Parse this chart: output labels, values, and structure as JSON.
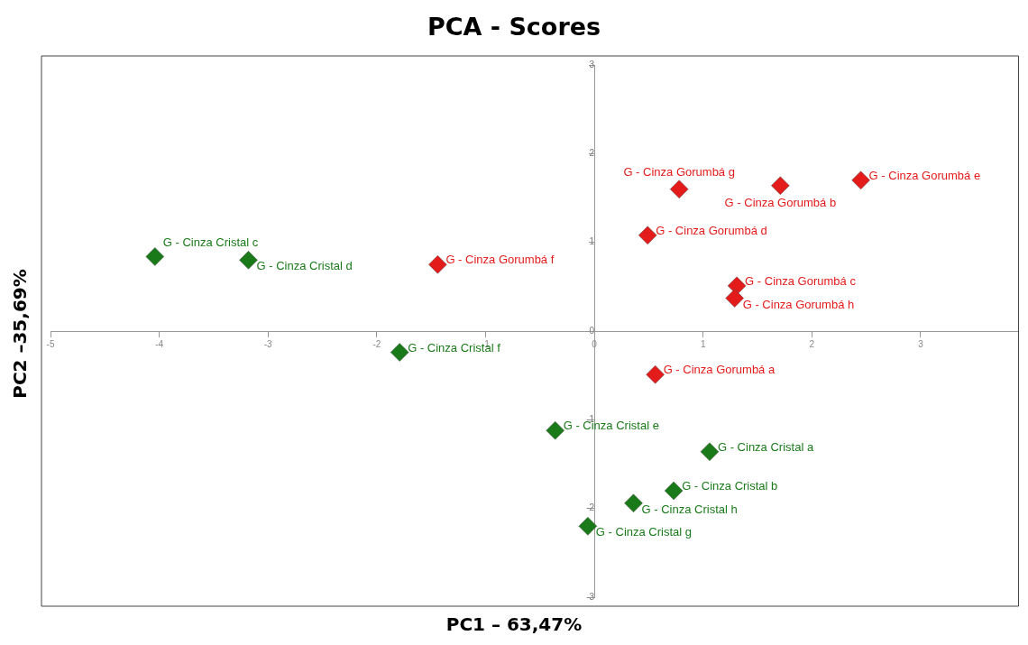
{
  "chart_data": {
    "type": "scatter",
    "title": "PCA - Scores",
    "xlabel": "PC1 – 63,47%",
    "ylabel": "PC2 –35,69%",
    "marker": "diamond",
    "grid": false,
    "legend": false,
    "xlim": [
      -5,
      3.9
    ],
    "xticks": [
      -5,
      -4,
      -3,
      -2,
      -1,
      0,
      1,
      2,
      3
    ],
    "ylim": [
      -3,
      3
    ],
    "yticks": [
      -3,
      -2,
      -1,
      0,
      1,
      2,
      3
    ],
    "series": [
      {
        "color": "#1a7a1a",
        "x": [
          -4.04,
          -3.18,
          -1.79,
          -0.36,
          1.06,
          0.73,
          0.36,
          -0.06
        ],
        "values": [
          0.84,
          0.8,
          -0.24,
          -1.12,
          -1.36,
          -1.8,
          -1.94,
          -2.2
        ]
      },
      {
        "color": "#e41b1b",
        "x": [
          -1.44,
          0.78,
          0.49,
          1.71,
          2.45,
          1.31,
          1.29,
          0.56
        ],
        "values": [
          0.75,
          1.6,
          1.08,
          1.64,
          1.7,
          0.51,
          0.37,
          -0.49
        ]
      }
    ],
    "annotations": [
      {
        "text": "G - Cinza Cristal c",
        "x": -4.04,
        "y": 0.84
      },
      {
        "text": "G - Cinza Cristal d",
        "x": -3.18,
        "y": 0.8
      },
      {
        "text": "G - Cinza Cristal f",
        "x": -1.79,
        "y": -0.24
      },
      {
        "text": "G - Cinza Cristal e",
        "x": -0.36,
        "y": -1.12
      },
      {
        "text": "G - Cinza Cristal a",
        "x": 1.06,
        "y": -1.36
      },
      {
        "text": "G - Cinza Cristal b",
        "x": 0.73,
        "y": -1.8
      },
      {
        "text": "G - Cinza Cristal h",
        "x": 0.36,
        "y": -1.94
      },
      {
        "text": "G - Cinza Cristal g",
        "x": -0.06,
        "y": -2.2
      },
      {
        "text": "G - Cinza Gorumbá f",
        "x": -1.44,
        "y": 0.75
      },
      {
        "text": "G - Cinza Gorumbá g",
        "x": 0.78,
        "y": 1.6
      },
      {
        "text": "G - Cinza Gorumbá d",
        "x": 0.49,
        "y": 1.08
      },
      {
        "text": "G - Cinza Gorumbá b",
        "x": 1.71,
        "y": 1.64
      },
      {
        "text": "G - Cinza Gorumbá e",
        "x": 2.45,
        "y": 1.7
      },
      {
        "text": "G - Cinza Gorumbá c",
        "x": 1.31,
        "y": 0.51
      },
      {
        "text": "G - Cinza Gorumbá h",
        "x": 1.29,
        "y": 0.37
      },
      {
        "text": "G - Cinza Gorumbá a",
        "x": 0.56,
        "y": -0.49
      }
    ]
  }
}
